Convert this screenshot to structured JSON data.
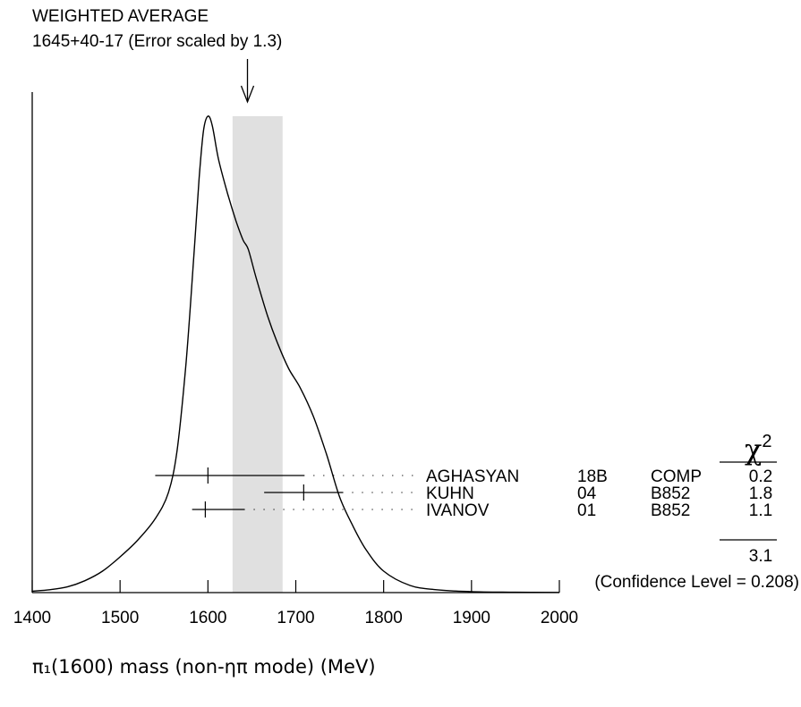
{
  "chart_data": {
    "type": "ideogram",
    "header": {
      "line1": "WEIGHTED AVERAGE",
      "line2": "1645+40-17 (Error scaled by 1.3)"
    },
    "weighted_average": {
      "value": 1645,
      "err_plus": 40,
      "err_minus": 17,
      "scale_factor": 1.3
    },
    "band": {
      "from": 1628,
      "to": 1685
    },
    "xlim": [
      1400,
      2000
    ],
    "x_ticks": [
      1400,
      1500,
      1600,
      1700,
      1800,
      1900,
      2000
    ],
    "xlabel": "π₁(1600) mass (non-ηπ mode) (MeV)",
    "chi2_header": "χ²",
    "measurements": [
      {
        "name": "AGHASYAN",
        "year": "18B",
        "experiment": "COMP",
        "value": 1600,
        "err_plus": 110,
        "err_minus": 60,
        "chi2": "0.2"
      },
      {
        "name": "KUHN",
        "year": "04",
        "experiment": "B852",
        "value": 1709,
        "err_plus": 45,
        "err_minus": 45,
        "chi2": "1.8"
      },
      {
        "name": "IVANOV",
        "year": "01",
        "experiment": "B852",
        "value": 1597,
        "err_plus": 45,
        "err_minus": 15,
        "chi2": "1.1"
      }
    ],
    "chi2_total": "3.1",
    "confidence_level": "(Confidence Level = 0.208)",
    "ideogram_curve": [
      [
        1400,
        0.003
      ],
      [
        1420,
        0.006
      ],
      [
        1440,
        0.012
      ],
      [
        1460,
        0.025
      ],
      [
        1480,
        0.045
      ],
      [
        1500,
        0.075
      ],
      [
        1520,
        0.11
      ],
      [
        1540,
        0.155
      ],
      [
        1555,
        0.21
      ],
      [
        1565,
        0.3
      ],
      [
        1575,
        0.48
      ],
      [
        1583,
        0.68
      ],
      [
        1590,
        0.87
      ],
      [
        1595,
        0.97
      ],
      [
        1600,
        1.0
      ],
      [
        1605,
        0.98
      ],
      [
        1612,
        0.91
      ],
      [
        1622,
        0.84
      ],
      [
        1632,
        0.78
      ],
      [
        1640,
        0.74
      ],
      [
        1646,
        0.72
      ],
      [
        1655,
        0.66
      ],
      [
        1668,
        0.58
      ],
      [
        1680,
        0.52
      ],
      [
        1692,
        0.47
      ],
      [
        1705,
        0.43
      ],
      [
        1720,
        0.37
      ],
      [
        1735,
        0.29
      ],
      [
        1750,
        0.2
      ],
      [
        1765,
        0.14
      ],
      [
        1780,
        0.09
      ],
      [
        1800,
        0.045
      ],
      [
        1830,
        0.015
      ],
      [
        1860,
        0.006
      ],
      [
        1900,
        0.002
      ],
      [
        1950,
        0.0008
      ],
      [
        2000,
        0.0003
      ]
    ]
  }
}
